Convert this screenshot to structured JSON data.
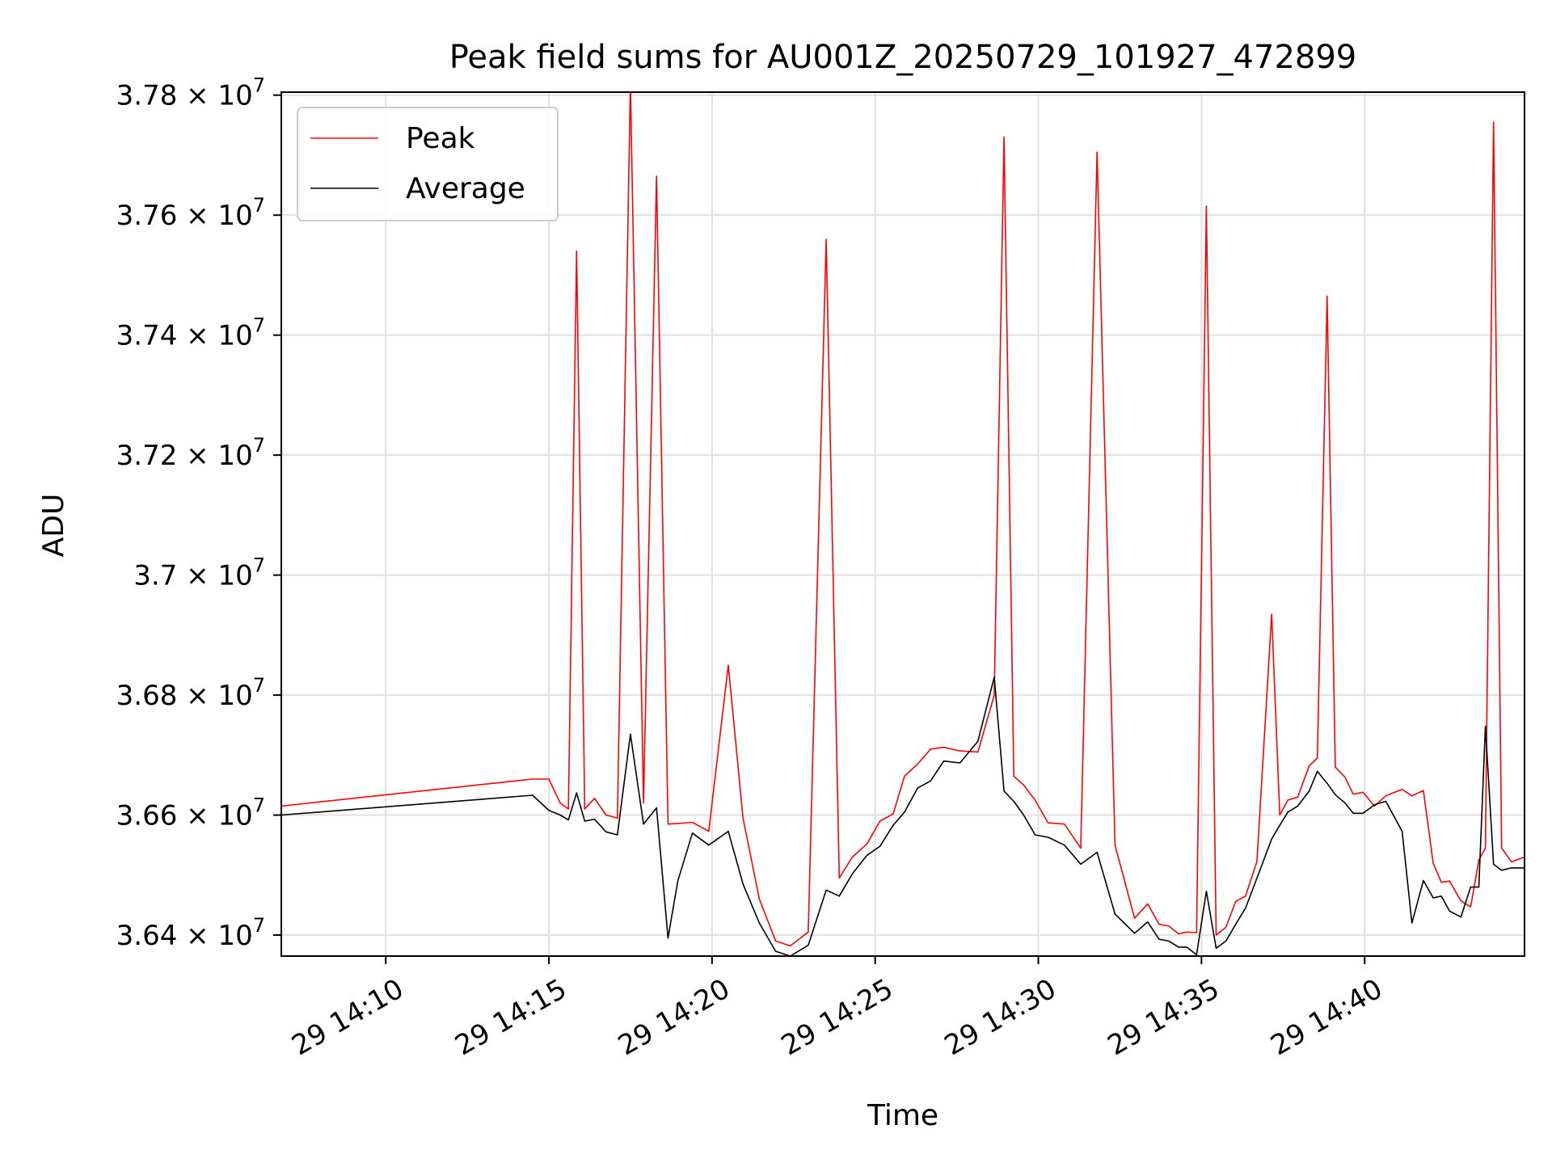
{
  "chart_data": {
    "type": "line",
    "title": "Peak field sums for AU001Z_20250729_101927_472899",
    "xlabel": "Time",
    "ylabel": "ADU",
    "x_tick_labels": [
      "29 14:10",
      "29 14:15",
      "29 14:20",
      "29 14:25",
      "29 14:30",
      "29 14:35",
      "29 14:40"
    ],
    "x_tick_minutes": [
      10,
      15,
      20,
      25,
      30,
      35,
      40
    ],
    "y_ticks": [
      {
        "value": 36400000,
        "mantissa": "3.64"
      },
      {
        "value": 36600000,
        "mantissa": "3.66"
      },
      {
        "value": 36800000,
        "mantissa": "3.68"
      },
      {
        "value": 37000000,
        "mantissa": "3.7"
      },
      {
        "value": 37200000,
        "mantissa": "3.72"
      },
      {
        "value": 37400000,
        "mantissa": "3.74"
      },
      {
        "value": 37600000,
        "mantissa": "3.76"
      },
      {
        "value": 37800000,
        "mantissa": "3.78"
      }
    ],
    "y_tick_times": "× 10",
    "y_tick_exponent": "7",
    "xlim_minutes": [
      6.8,
      44.9
    ],
    "ylim": [
      36365000,
      37805000
    ],
    "grid": true,
    "legend_position": "upper-left",
    "x_unit_note": "x values are minutes past 29 14:00",
    "series": [
      {
        "name": "Peak",
        "color": "#ff0000",
        "x": [
          6.8,
          14.5,
          15.0,
          15.35,
          15.6,
          15.85,
          16.1,
          16.4,
          16.75,
          17.1,
          17.5,
          17.9,
          18.3,
          18.65,
          18.95,
          19.4,
          19.9,
          20.5,
          20.95,
          21.45,
          21.95,
          22.4,
          22.95,
          23.5,
          23.9,
          24.3,
          24.75,
          25.15,
          25.55,
          25.9,
          26.3,
          26.7,
          27.1,
          27.6,
          28.15,
          28.65,
          28.95,
          29.25,
          29.55,
          29.9,
          30.3,
          30.8,
          31.3,
          31.8,
          32.35,
          32.95,
          33.35,
          33.7,
          34.0,
          34.3,
          34.55,
          34.85,
          35.15,
          35.45,
          35.75,
          36.05,
          36.35,
          36.7,
          37.15,
          37.4,
          37.65,
          37.95,
          38.3,
          38.55,
          38.85,
          39.1,
          39.4,
          39.65,
          39.95,
          40.3,
          40.65,
          41.15,
          41.45,
          41.8,
          42.1,
          42.35,
          42.6,
          42.95,
          43.25,
          43.5,
          43.7,
          43.95,
          44.2,
          44.5,
          44.9
        ],
        "y": [
          36615000,
          36660000,
          36660000,
          36620000,
          36610000,
          37540000,
          36610000,
          36628000,
          36600000,
          36595000,
          37820000,
          36620000,
          37665000,
          36585000,
          36586000,
          36588000,
          36573000,
          36850000,
          36595000,
          36460000,
          36390000,
          36382000,
          36405000,
          37560000,
          36495000,
          36530000,
          36552000,
          36590000,
          36602000,
          36665000,
          36685000,
          36710000,
          36713000,
          36707000,
          36705000,
          36800000,
          37730000,
          36665000,
          36650000,
          36625000,
          36587000,
          36585000,
          36545000,
          37705000,
          36550000,
          36428000,
          36452000,
          36418000,
          36415000,
          36402000,
          36405000,
          36404000,
          37615000,
          36400000,
          36413000,
          36456000,
          36465000,
          36523000,
          36935000,
          36600000,
          36625000,
          36630000,
          36682000,
          36695000,
          37465000,
          36680000,
          36663000,
          36635000,
          36638000,
          36615000,
          36632000,
          36643000,
          36632000,
          36641000,
          36520000,
          36488000,
          36490000,
          36457000,
          36447000,
          36525000,
          36545000,
          37755000,
          36545000,
          36522000,
          36530000
        ]
      },
      {
        "name": "Average",
        "color": "#000000",
        "x": [
          6.8,
          14.5,
          15.0,
          15.35,
          15.6,
          15.85,
          16.1,
          16.4,
          16.75,
          17.1,
          17.5,
          17.9,
          18.3,
          18.65,
          18.95,
          19.4,
          19.9,
          20.5,
          20.95,
          21.45,
          21.95,
          22.4,
          22.95,
          23.5,
          23.9,
          24.3,
          24.75,
          25.15,
          25.55,
          25.9,
          26.3,
          26.7,
          27.1,
          27.6,
          28.15,
          28.65,
          28.95,
          29.25,
          29.55,
          29.9,
          30.3,
          30.8,
          31.3,
          31.8,
          32.35,
          32.95,
          33.35,
          33.7,
          34.0,
          34.3,
          34.55,
          34.85,
          35.15,
          35.45,
          35.75,
          36.05,
          36.35,
          36.7,
          37.15,
          37.4,
          37.65,
          37.95,
          38.3,
          38.55,
          38.85,
          39.1,
          39.4,
          39.65,
          39.95,
          40.3,
          40.65,
          41.15,
          41.45,
          41.8,
          42.1,
          42.35,
          42.6,
          42.95,
          43.25,
          43.5,
          43.7,
          43.95,
          44.2,
          44.5,
          44.9
        ],
        "y": [
          36600000,
          36633000,
          36608000,
          36600000,
          36592000,
          36637000,
          36590000,
          36593000,
          36572000,
          36567000,
          36735000,
          36585000,
          36612000,
          36395000,
          36490000,
          36570000,
          36550000,
          36573000,
          36485000,
          36420000,
          36373000,
          36365000,
          36383000,
          36475000,
          36465000,
          36502000,
          36533000,
          36548000,
          36583000,
          36605000,
          36645000,
          36657000,
          36690000,
          36687000,
          36723000,
          36830000,
          36640000,
          36623000,
          36600000,
          36567000,
          36563000,
          36550000,
          36518000,
          36538000,
          36435000,
          36403000,
          36422000,
          36393000,
          36390000,
          36380000,
          36380000,
          36367000,
          36473000,
          36378000,
          36390000,
          36418000,
          36445000,
          36495000,
          36560000,
          36583000,
          36605000,
          36615000,
          36640000,
          36673000,
          36653000,
          36634000,
          36620000,
          36603000,
          36603000,
          36617000,
          36623000,
          36573000,
          36420000,
          36491000,
          36462000,
          36465000,
          36440000,
          36430000,
          36480000,
          36480000,
          36748000,
          36518000,
          36508000,
          36512000,
          36512000
        ]
      }
    ]
  }
}
